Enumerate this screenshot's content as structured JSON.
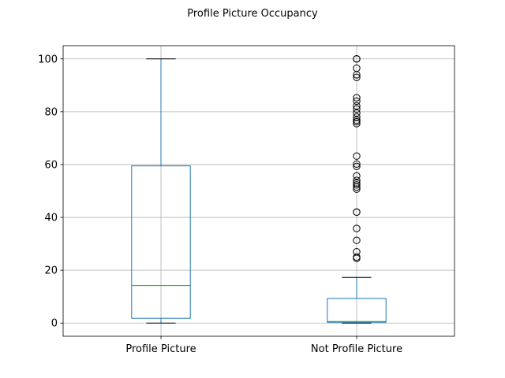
{
  "chart_data": {
    "type": "box",
    "title": "Profile Picture Occupancy",
    "xlabel": "",
    "ylabel": "",
    "ylim": [
      -5,
      105
    ],
    "yticks": [
      0,
      20,
      40,
      60,
      80,
      100
    ],
    "grid": true,
    "categories": [
      "Profile Picture",
      "Not Profile Picture"
    ],
    "boxes": [
      {
        "whisker_low": 0,
        "q1": 1.8,
        "median": 14.2,
        "q3": 59.5,
        "whisker_high": 100,
        "outliers": []
      },
      {
        "whisker_low": 0,
        "q1": 0.3,
        "median": 0.6,
        "q3": 9.3,
        "whisker_high": 17.3,
        "outliers": [
          24.5,
          25,
          27,
          31.3,
          35.8,
          42,
          42,
          50.7,
          51.5,
          52.3,
          53,
          54,
          55.7,
          59.3,
          60.2,
          63.2,
          75.5,
          76.2,
          76.8,
          78,
          79.5,
          81,
          82.2,
          84,
          85.3,
          93,
          94,
          96.5,
          100,
          100,
          100
        ]
      }
    ],
    "colors": {
      "box": "#1f77b4",
      "median": "#2ca02c",
      "whisker": "#1f77b4",
      "cap": "#000000",
      "grid": "#b0b0b0",
      "outlier_edge": "#000000"
    }
  }
}
